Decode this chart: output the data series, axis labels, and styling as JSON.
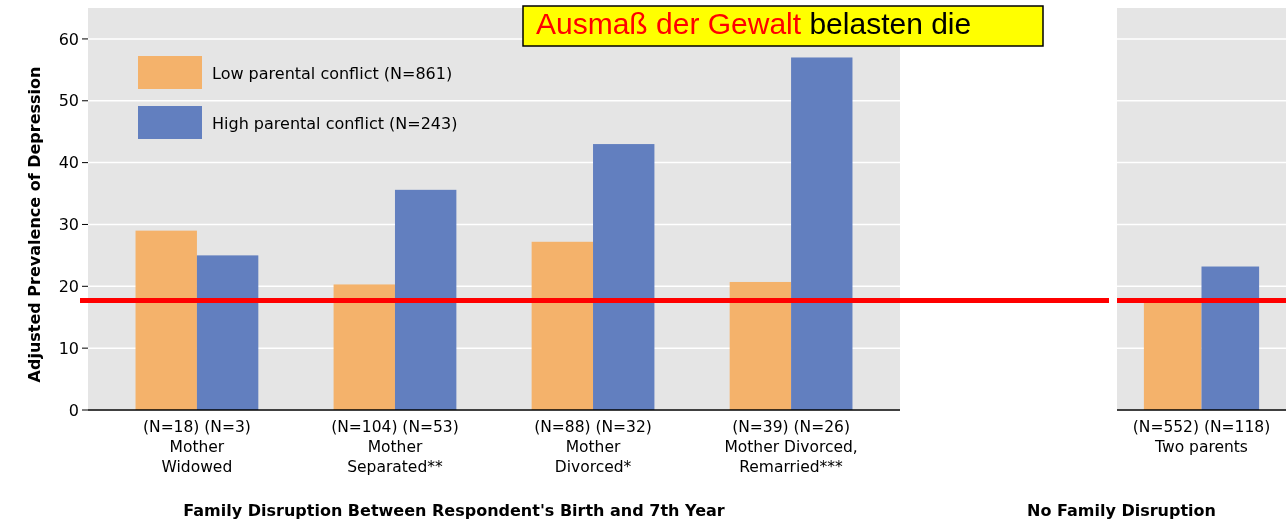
{
  "chart_data": [
    {
      "type": "bar",
      "ylabel": "Adjusted Prevalence of Depression",
      "xlabel": "Family Disruption Between Respondent's Birth and 7th Year",
      "categories": [
        "(N=18) (N=3)\nMother\nWidowed",
        "(N=104) (N=53)\nMother\nSeparated**",
        "(N=88) (N=32)\nMother\nDivorced*",
        "(N=39) (N=26)\nMother Divorced,\nRemarried***"
      ],
      "series": [
        {
          "name": "Low parental conflict (N=861)",
          "color": "#f4b26b",
          "values": [
            29,
            20.3,
            27.2,
            20.7
          ]
        },
        {
          "name": "High parental conflict (N=243)",
          "color": "#627fbf",
          "values": [
            25,
            35.6,
            43,
            57
          ]
        }
      ],
      "ylim": [
        0,
        65
      ],
      "yticks": [
        0,
        10,
        20,
        30,
        40,
        50,
        60
      ],
      "grid": "y",
      "legend": "top left",
      "ref_lines": [
        {
          "axis": "y",
          "value": 17.7,
          "color": "#ff0000"
        }
      ],
      "annotations": [
        "Ausmaß der Gewalt",
        "belasten die"
      ]
    },
    {
      "type": "bar",
      "xlabel": "No Family Disruption",
      "categories": [
        "(N=552) (N=118)\nTwo parents"
      ],
      "series": [
        {
          "color": "#f4b26b",
          "values": [
            17.5
          ]
        },
        {
          "color": "#627fbf",
          "values": [
            23.2
          ]
        }
      ],
      "ylim": [
        0,
        65
      ],
      "yticks": [
        0,
        10,
        20,
        30,
        40,
        50,
        60
      ],
      "grid": "y",
      "tick_labels": "x",
      "ref_lines": [
        {
          "axis": "y",
          "value": 17.7,
          "color": "#ff0000"
        }
      ]
    }
  ]
}
